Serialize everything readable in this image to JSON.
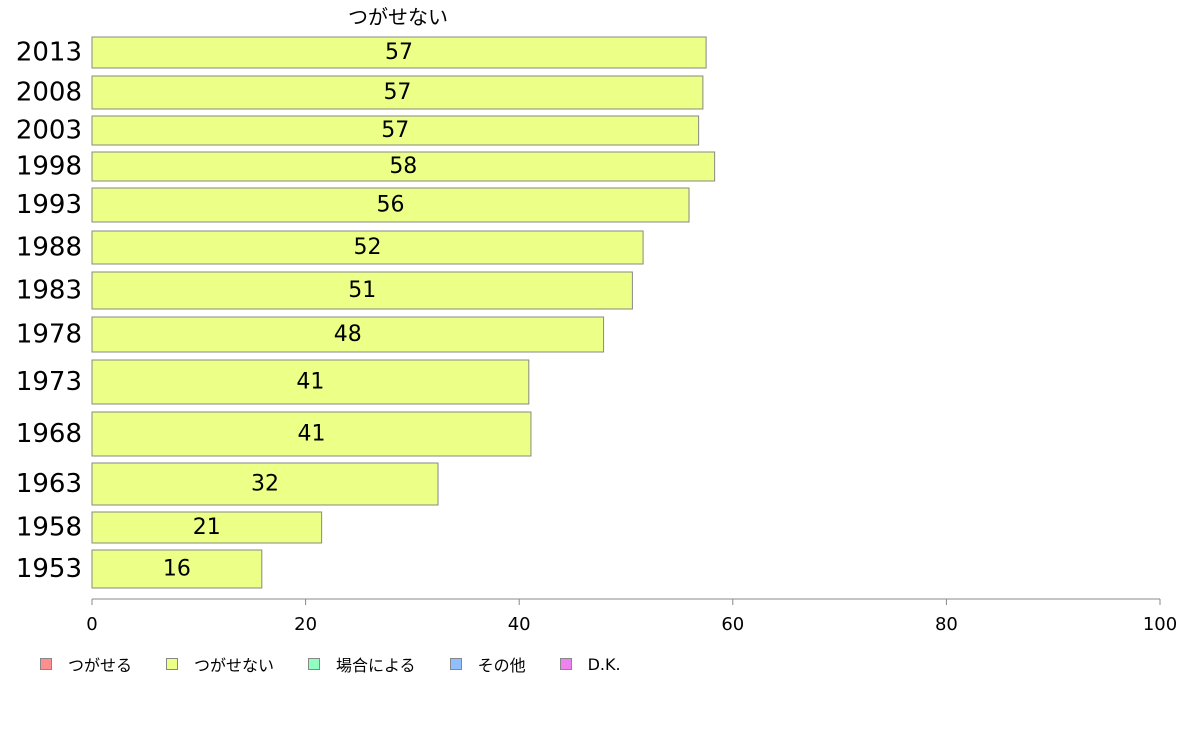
{
  "chart_data": {
    "type": "bar",
    "orientation": "horizontal",
    "title": "つがせない",
    "categories": [
      "2013",
      "2008",
      "2003",
      "1998",
      "1993",
      "1988",
      "1983",
      "1978",
      "1973",
      "1968",
      "1963",
      "1958",
      "1953"
    ],
    "values": [
      57.5,
      57.2,
      56.8,
      58.3,
      55.9,
      51.6,
      50.6,
      47.9,
      40.9,
      41.1,
      32.4,
      21.5,
      15.9
    ],
    "value_labels": [
      "57",
      "57",
      "57",
      "58",
      "56",
      "52",
      "51",
      "48",
      "41",
      "41",
      "32",
      "21",
      "16"
    ],
    "bar_color": "#ecff86",
    "bar_border_color": "#888888",
    "xlim": [
      0,
      100
    ],
    "xticks": [
      "0",
      "20",
      "40",
      "60",
      "80",
      "100"
    ],
    "xtick_values": [
      0,
      20,
      40,
      60,
      80,
      100
    ],
    "grid": false,
    "legend_position": "bottom-left"
  },
  "legend": {
    "items": [
      {
        "label": "つがせる",
        "color": "#ff8f8f"
      },
      {
        "label": "つがせない",
        "color": "#ecff86"
      },
      {
        "label": "場合による",
        "color": "#8fffc0"
      },
      {
        "label": "その他",
        "color": "#8fbfff"
      },
      {
        "label": "D.K.",
        "color": "#ee82ee"
      }
    ]
  }
}
